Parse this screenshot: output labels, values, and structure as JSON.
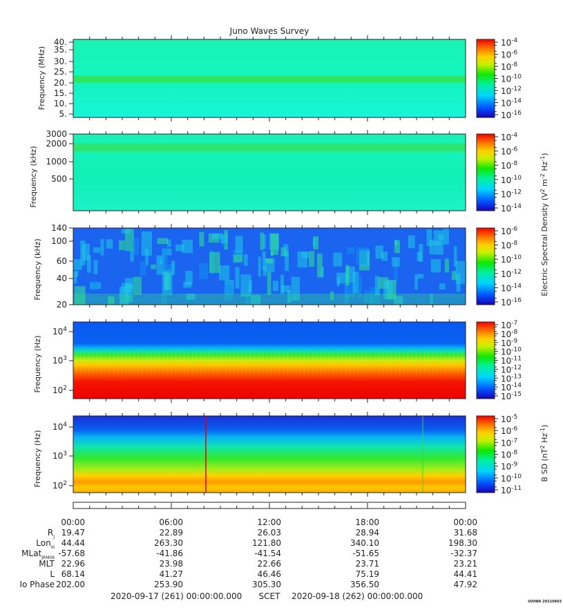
{
  "chart_data": {
    "type": "heatmap",
    "title": "Juno Waves Survey",
    "panels": [
      {
        "id": "p1",
        "ylabel": "Frequency (MHz)",
        "yticks": [
          "40.",
          "35.",
          "30.",
          "25.",
          "20.",
          "15.",
          "10.",
          "5."
        ],
        "cbar_ticks": [
          {
            "b": "10",
            "e": "-4"
          },
          {
            "b": "10",
            "e": "-6"
          },
          {
            "b": "10",
            "e": "-8"
          },
          {
            "b": "10",
            "e": "-10"
          },
          {
            "b": "10",
            "e": "-12"
          },
          {
            "b": "10",
            "e": "-14"
          },
          {
            "b": "10",
            "e": "-16"
          }
        ]
      },
      {
        "id": "p2",
        "ylabel": "Frequency (kHz)",
        "yticks": [
          "3000",
          "2000",
          "1000",
          "500"
        ],
        "cbar_ticks": [
          {
            "b": "10",
            "e": "-4"
          },
          {
            "b": "10",
            "e": "-6"
          },
          {
            "b": "10",
            "e": "-8"
          },
          {
            "b": "10",
            "e": "-10"
          },
          {
            "b": "10",
            "e": "-12"
          },
          {
            "b": "10",
            "e": "-14"
          }
        ]
      },
      {
        "id": "p3",
        "ylabel": "Frequency (kHz)",
        "yticks": [
          "140",
          "100",
          "60",
          "40",
          "20"
        ],
        "cbar_ticks": [
          {
            "b": "10",
            "e": "-6"
          },
          {
            "b": "10",
            "e": "-8"
          },
          {
            "b": "10",
            "e": "-10"
          },
          {
            "b": "10",
            "e": "-12"
          },
          {
            "b": "10",
            "e": "-14"
          },
          {
            "b": "10",
            "e": "-16"
          }
        ]
      },
      {
        "id": "p4",
        "ylabel": "Frequency (Hz)",
        "yticks": [
          {
            "b": "10",
            "e": "4"
          },
          {
            "b": "10",
            "e": "3"
          },
          {
            "b": "10",
            "e": "2"
          }
        ],
        "cbar_ticks": [
          {
            "b": "10",
            "e": "-7"
          },
          {
            "b": "10",
            "e": "-8"
          },
          {
            "b": "10",
            "e": "-9"
          },
          {
            "b": "10",
            "e": "-10"
          },
          {
            "b": "10",
            "e": "-11"
          },
          {
            "b": "10",
            "e": "-12"
          },
          {
            "b": "10",
            "e": "-13"
          },
          {
            "b": "10",
            "e": "-14"
          },
          {
            "b": "10",
            "e": "-15"
          }
        ]
      },
      {
        "id": "p5",
        "ylabel": "Frequency (Hz)",
        "yticks": [
          {
            "b": "10",
            "e": "4"
          },
          {
            "b": "10",
            "e": "3"
          },
          {
            "b": "10",
            "e": "2"
          }
        ],
        "cbar_ticks": [
          {
            "b": "10",
            "e": "-5"
          },
          {
            "b": "10",
            "e": "-6"
          },
          {
            "b": "10",
            "e": "-7"
          },
          {
            "b": "10",
            "e": "-8"
          },
          {
            "b": "10",
            "e": "-9"
          },
          {
            "b": "10",
            "e": "-10"
          },
          {
            "b": "10",
            "e": "-11"
          }
        ]
      }
    ],
    "cbar_label_e": {
      "pre": "Electric Spectral Density (V",
      "sup1": "2",
      "mid": " m",
      "sup2": "-2",
      "mid2": " Hz",
      "sup3": "-1",
      "post": ")"
    },
    "cbar_label_b": {
      "pre": "B SD (nT",
      "sup1": "2",
      "mid": " Hz",
      "sup3": "-1",
      "post": ")"
    },
    "x_tick_labels": [
      "00:00",
      "06:00",
      "12:00",
      "18:00",
      "00:00"
    ],
    "ephemeris_rows": [
      {
        "label": "R",
        "sub": "J",
        "values": [
          "19.47",
          "22.89",
          "26.03",
          "28.94",
          "31.68"
        ]
      },
      {
        "label": "Lon",
        "sub": "III",
        "values": [
          "44.44",
          "263.30",
          "121.80",
          "340.10",
          "198.30"
        ]
      },
      {
        "label": "MLat",
        "sub": "JRM09",
        "values": [
          "-57.68",
          "-41.86",
          "-41.54",
          "-51.65",
          "-32.37"
        ]
      },
      {
        "label": "MLT",
        "sub": "",
        "values": [
          "22.96",
          "23.98",
          "22.66",
          "23.71",
          "23.21"
        ]
      },
      {
        "label": "L",
        "sub": "",
        "values": [
          "68.14",
          "41.27",
          "46.46",
          "75.19",
          "44.41"
        ]
      },
      {
        "label": "Io Phase",
        "sub": "",
        "values": [
          "202.00",
          "253.90",
          "305.30",
          "356.50",
          "47.92"
        ]
      }
    ],
    "footer": {
      "start": "2020-09-17 (261) 00:00:00.000",
      "mid": "SCET",
      "end": "2020-09-18 (262) 00:00:00.000"
    },
    "credit": "UIOWA 20210403"
  }
}
